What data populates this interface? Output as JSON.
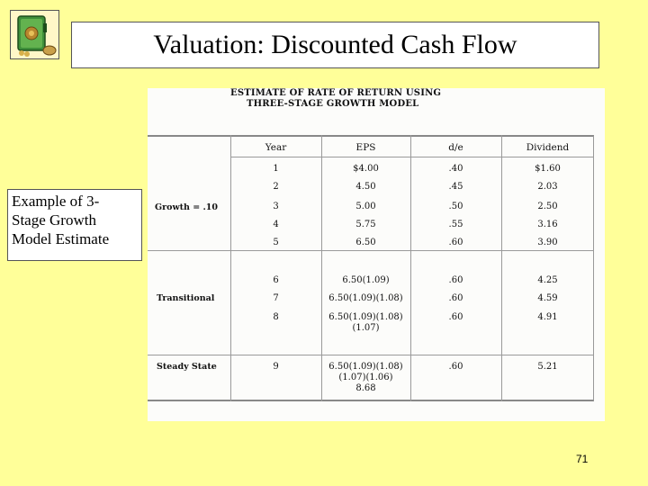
{
  "slide": {
    "title": "Valuation: Discounted Cash Flow",
    "page_number": "71",
    "logo_icon": "money-safe-icon"
  },
  "side_note": {
    "lines": [
      "Example of 3-",
      "Stage Growth",
      "Model Estimate"
    ]
  },
  "figure": {
    "heading_lines": [
      "ESTIMATE OF RATE OF RETURN USING",
      "THREE-STAGE GROWTH MODEL"
    ],
    "headers": [
      "Year",
      "EPS",
      "d/e",
      "Dividend"
    ],
    "stages": [
      {
        "label": "Growth = .10",
        "rows": [
          {
            "year": "1",
            "eps": "$4.00",
            "de": ".40",
            "dividend": "$1.60"
          },
          {
            "year": "2",
            "eps": "4.50",
            "de": ".45",
            "dividend": "2.03"
          },
          {
            "year": "3",
            "eps": "5.00",
            "de": ".50",
            "dividend": "2.50"
          },
          {
            "year": "4",
            "eps": "5.75",
            "de": ".55",
            "dividend": "3.16"
          },
          {
            "year": "5",
            "eps": "6.50",
            "de": ".60",
            "dividend": "3.90"
          }
        ]
      },
      {
        "label": "Transitional",
        "rows": [
          {
            "year": "6",
            "eps": "6.50(1.09)",
            "de": ".60",
            "dividend": "4.25"
          },
          {
            "year": "7",
            "eps": "6.50(1.09)(1.08)",
            "de": ".60",
            "dividend": "4.59"
          },
          {
            "year": "8",
            "eps": "6.50(1.09)(1.08)",
            "eps2": "(1.07)",
            "de": ".60",
            "dividend": "4.91"
          }
        ]
      },
      {
        "label": "Steady State",
        "rows": [
          {
            "year": "9",
            "eps": "6.50(1.09)(1.08)",
            "eps2": "(1.07)(1.06)",
            "eps3": "8.68",
            "de": ".60",
            "dividend": "5.21"
          }
        ]
      }
    ]
  }
}
